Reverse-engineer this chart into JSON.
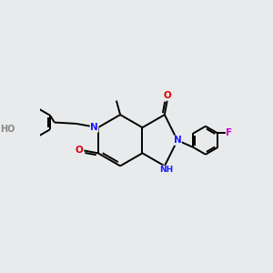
{
  "bg_color": "#e8eaec",
  "bond_color": "#000000",
  "bond_width": 1.4,
  "atom_colors": {
    "N": "#1a1aff",
    "O": "#dd0000",
    "F": "#cc00cc",
    "HO_H": "#888888",
    "HO_O": "#dd0000"
  },
  "font_size": 7.5,
  "font_size_small": 6.5
}
